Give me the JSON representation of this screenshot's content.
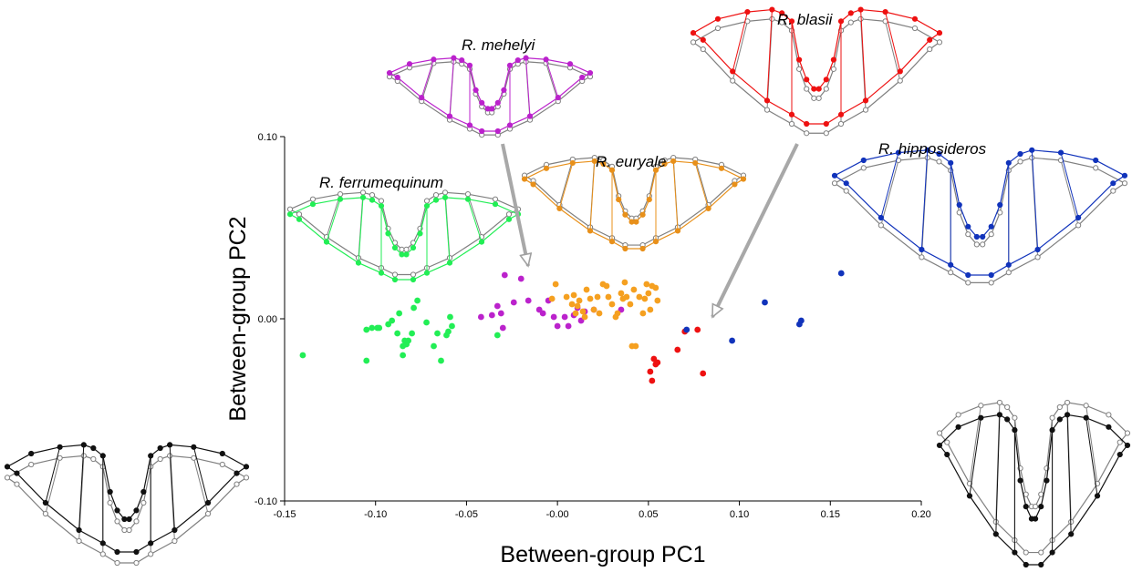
{
  "chart_data": {
    "type": "scatter",
    "xlabel": "Between-group PC1",
    "ylabel": "Between-group PC2",
    "xlim": [
      -0.15,
      0.2
    ],
    "ylim": [
      -0.1,
      0.1
    ],
    "x_ticks": [
      "-0.15",
      "-0.10",
      "-0.05",
      "-0.00",
      "0.05",
      "0.10",
      "0.15",
      "0.20"
    ],
    "y_ticks": [
      "0.10",
      "0.00",
      "-0.10"
    ],
    "series": [
      {
        "name": "R. ferrumequinum",
        "color": "#22ee55",
        "points": [
          [
            -0.14,
            -0.02
          ],
          [
            -0.105,
            -0.023
          ],
          [
            -0.105,
            -0.006
          ],
          [
            -0.102,
            -0.005
          ],
          [
            -0.099,
            -0.005
          ],
          [
            -0.098,
            -0.005
          ],
          [
            -0.093,
            -0.003
          ],
          [
            -0.091,
            -0.001
          ],
          [
            -0.088,
            -0.008
          ],
          [
            -0.087,
            0.003
          ],
          [
            -0.085,
            -0.015
          ],
          [
            -0.085,
            -0.02
          ],
          [
            -0.084,
            -0.012
          ],
          [
            -0.083,
            -0.014
          ],
          [
            -0.082,
            -0.012
          ],
          [
            -0.08,
            -0.008
          ],
          [
            -0.079,
            0.006
          ],
          [
            -0.077,
            0.01
          ],
          [
            -0.072,
            -0.002
          ],
          [
            -0.068,
            -0.015
          ],
          [
            -0.066,
            -0.008
          ],
          [
            -0.064,
            -0.023
          ],
          [
            -0.061,
            -0.009
          ],
          [
            -0.06,
            -0.007
          ],
          [
            -0.059,
            0.001
          ],
          [
            -0.058,
            -0.004
          ],
          [
            -0.033,
            -0.009
          ]
        ]
      },
      {
        "name": "R. mehelyi",
        "color": "#bb22cc",
        "points": [
          [
            -0.042,
            0.001
          ],
          [
            -0.036,
            0.002
          ],
          [
            -0.033,
            0.007
          ],
          [
            -0.031,
            0.003
          ],
          [
            -0.03,
            -0.005
          ],
          [
            -0.029,
            0.024
          ],
          [
            -0.024,
            0.009
          ],
          [
            -0.02,
            0.022
          ],
          [
            -0.016,
            0.01
          ],
          [
            -0.01,
            0.005
          ],
          [
            -0.008,
            0.003
          ],
          [
            -0.005,
            0.01
          ],
          [
            0.0,
            -0.004
          ],
          [
            -0.002,
            0.001
          ],
          [
            0.006,
            -0.004
          ],
          [
            0.009,
            0.002
          ],
          [
            0.011,
            0.006
          ],
          [
            0.013,
            -0.001
          ],
          [
            0.015,
            0.004
          ],
          [
            0.02,
            0.005
          ],
          [
            0.035,
            0.005
          ],
          [
            0.004,
            0.001
          ]
        ]
      },
      {
        "name": "R. euryale",
        "color": "#f5a020",
        "points": [
          [
            -0.003,
            0.011
          ],
          [
            -0.001,
            0.019
          ],
          [
            0.005,
            0.012
          ],
          [
            0.008,
            0.008
          ],
          [
            0.009,
            0.013
          ],
          [
            0.01,
            0.003
          ],
          [
            0.011,
            0.007
          ],
          [
            0.012,
            0.01
          ],
          [
            0.014,
            0.004
          ],
          [
            0.015,
            0.001
          ],
          [
            0.016,
            0.016
          ],
          [
            0.018,
            0.011
          ],
          [
            0.02,
            0.005
          ],
          [
            0.022,
            0.012
          ],
          [
            0.023,
            0.003
          ],
          [
            0.025,
            0.019
          ],
          [
            0.027,
            0.018
          ],
          [
            0.028,
            0.012
          ],
          [
            0.03,
            0.008
          ],
          [
            0.032,
            0.001
          ],
          [
            0.033,
            0.003
          ],
          [
            0.035,
            0.014
          ],
          [
            0.036,
            0.011
          ],
          [
            0.037,
            0.02
          ],
          [
            0.04,
            0.008
          ],
          [
            0.041,
            -0.015
          ],
          [
            0.043,
            -0.015
          ],
          [
            0.045,
            0.012
          ],
          [
            0.047,
            0.003
          ],
          [
            0.048,
            0.011
          ],
          [
            0.049,
            0.019
          ],
          [
            0.05,
            0.014
          ],
          [
            0.051,
            0.005
          ],
          [
            0.052,
            0.018
          ],
          [
            0.054,
            0.017
          ],
          [
            0.055,
            0.01
          ],
          [
            0.038,
            0.012
          ],
          [
            0.042,
            0.016
          ]
        ]
      },
      {
        "name": "R. blasii",
        "color": "#ee1111",
        "points": [
          [
            0.051,
            -0.029
          ],
          [
            0.052,
            -0.034
          ],
          [
            0.053,
            -0.022
          ],
          [
            0.054,
            -0.025
          ],
          [
            0.055,
            -0.024
          ],
          [
            0.066,
            -0.017
          ],
          [
            0.07,
            -0.007
          ],
          [
            0.077,
            -0.006
          ],
          [
            0.08,
            -0.03
          ]
        ]
      },
      {
        "name": "R. hipposideros",
        "color": "#1133bb",
        "points": [
          [
            0.071,
            -0.006
          ],
          [
            0.096,
            -0.012
          ],
          [
            0.114,
            0.009
          ],
          [
            0.133,
            -0.003
          ],
          [
            0.134,
            -0.001
          ],
          [
            0.156,
            0.025
          ]
        ]
      }
    ],
    "annotations": [
      "R. mehelyi",
      "R. blasii",
      "R. euryale",
      "R. hipposideros",
      "R. ferrumequinum"
    ]
  }
}
